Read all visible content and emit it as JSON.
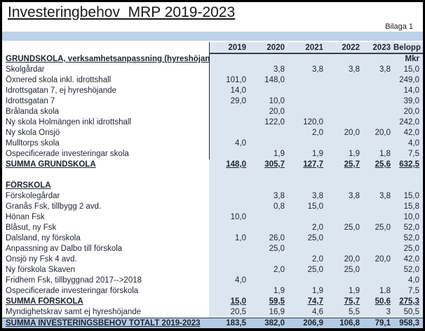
{
  "page": {
    "title": "Investeringbehov  MRP 2019-2023",
    "annotation": "Bilaga 1"
  },
  "colors": {
    "band": "#bcd2ec",
    "data_bg": "#dce6f1",
    "total_bg": "#b4cbe6",
    "frame": "#000000"
  },
  "table": {
    "column_headers": [
      "2019",
      "2020",
      "2021",
      "2022",
      "2023",
      "Belopp"
    ],
    "unit_label": "Mkr",
    "rows": [
      {
        "label": "GRUNDSKOLA, verksamhetsanpassning (hyreshöjande)",
        "values": [
          "",
          "",
          "",
          "",
          "",
          "Mkr"
        ],
        "style": "section",
        "vline": true
      },
      {
        "label": "Skolgårdar",
        "values": [
          "",
          "3,8",
          "3,8",
          "3,8",
          "3,8",
          "15,0"
        ],
        "style": "item",
        "vline": true
      },
      {
        "label": "Öxnered skola inkl. idrottshall",
        "values": [
          "101,0",
          "148,0",
          "",
          "",
          "",
          "249,0"
        ],
        "style": "item",
        "vline": true
      },
      {
        "label": "Idrottsgatan 7, ej hyreshöjande",
        "values": [
          "14,0",
          "",
          "",
          "",
          "",
          "14,0"
        ],
        "style": "item",
        "vline": true
      },
      {
        "label": "Idrottsgatan 7",
        "values": [
          "29,0",
          "10,0",
          "",
          "",
          "",
          "39,0"
        ],
        "style": "item",
        "vline": true
      },
      {
        "label": "Brålanda skola",
        "values": [
          "",
          "20,0",
          "",
          "",
          "",
          "20,0"
        ],
        "style": "item",
        "vline": true
      },
      {
        "label": "Ny skola Holmängen inkl idrottshall",
        "values": [
          "",
          "122,0",
          "120,0",
          "",
          "",
          "242,0"
        ],
        "style": "item",
        "vline": true
      },
      {
        "label": "Ny skola Onsjö",
        "values": [
          "",
          "",
          "2,0",
          "20,0",
          "20,0",
          "42,0"
        ],
        "style": "item",
        "vline": true
      },
      {
        "label": "Mulltorps skola",
        "values": [
          "4,0",
          "",
          "",
          "",
          "",
          "4,0"
        ],
        "style": "item",
        "vline": true
      },
      {
        "label": "Ospecificerade investeringar skola",
        "values": [
          "",
          "1,9",
          "1,9",
          "1,9",
          "1,8",
          "7,5"
        ],
        "style": "item",
        "vline": true
      },
      {
        "label": "SUMMA GRUNDSKOLA",
        "values": [
          "148,0",
          "305,7",
          "127,7",
          "25,7",
          "25,6",
          "632,5"
        ],
        "style": "sum",
        "vline": false
      },
      {
        "label": "",
        "values": [
          "",
          "",
          "",
          "",
          "",
          ""
        ],
        "style": "blank",
        "vline": false
      },
      {
        "label": "FÖRSKOLA",
        "values": [
          "",
          "",
          "",
          "",
          "",
          ""
        ],
        "style": "section",
        "vline": false
      },
      {
        "label": "Förskolegårdar",
        "values": [
          "",
          "3,8",
          "3,8",
          "3,8",
          "3,8",
          "15,0"
        ],
        "style": "item",
        "vline": false
      },
      {
        "label": "Granås Fsk, tillbygg 2 avd.",
        "values": [
          "",
          "0,8",
          "15,0",
          "",
          "",
          "15,8"
        ],
        "style": "item",
        "vline": false
      },
      {
        "label": "Hönan Fsk",
        "values": [
          "10,0",
          "",
          "",
          "",
          "",
          "10,0"
        ],
        "style": "item",
        "vline": false
      },
      {
        "label": "Blåsut, ny Fsk",
        "values": [
          "",
          "",
          "2,0",
          "25,0",
          "25,0",
          "52,0"
        ],
        "style": "item",
        "vline": false
      },
      {
        "label": "Dalsland, ny förskola",
        "values": [
          "1,0",
          "26,0",
          "25,0",
          "",
          "",
          "52,0"
        ],
        "style": "item",
        "vline": false
      },
      {
        "label": "Anpassning av Dalbo till förskola",
        "values": [
          "",
          "25,0",
          "",
          "",
          "",
          "25,0"
        ],
        "style": "item",
        "vline": false
      },
      {
        "label": "Onsjö ny Fsk 4 avd.",
        "values": [
          "",
          "",
          "2,0",
          "20,0",
          "20,0",
          "42,0"
        ],
        "style": "item",
        "vline": false
      },
      {
        "label": "Ny förskola Skaven",
        "values": [
          "",
          "2,0",
          "25,0",
          "25,0",
          "",
          "52,0"
        ],
        "style": "item",
        "vline": false
      },
      {
        "label": "Fridhem Fsk, tillbyggnad 2017-->2018",
        "values": [
          "4,0",
          "",
          "",
          "",
          "",
          "4,0"
        ],
        "style": "item",
        "vline": false
      },
      {
        "label": "Ospecificerade investeringar förskola",
        "values": [
          "",
          "1,9",
          "1,9",
          "1,9",
          "1,8",
          "7,5"
        ],
        "style": "item",
        "vline": false
      },
      {
        "label": "SUMMA FÖRSKOLA",
        "values": [
          "15,0",
          "59,5",
          "74,7",
          "75,7",
          "50,6",
          "275,3"
        ],
        "style": "sum",
        "vline": false
      },
      {
        "label": "Myndighetskrav samt ej hyreshöjande",
        "values": [
          "20,5",
          "16,9",
          "4,6",
          "5,5",
          "3",
          "50,5"
        ],
        "style": "item",
        "vline": false
      },
      {
        "label": "SUMMA INVESTERINGSBEHOV TOTALT 2019-2023",
        "values": [
          "183,5",
          "382,0",
          "206,9",
          "106,8",
          "79,1",
          "958,3"
        ],
        "style": "total",
        "vline": false
      }
    ]
  }
}
